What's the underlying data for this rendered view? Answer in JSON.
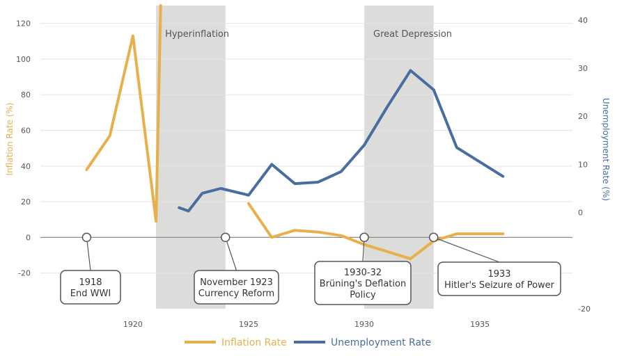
{
  "chart_data": {
    "type": "line",
    "xlim": [
      1916,
      1939
    ],
    "x_ticks": [
      1920,
      1925,
      1930,
      1935
    ],
    "ylabel_left": "Inflation Rate (%)",
    "ylabel_right": "Unemployment Rate (%)",
    "ylim_left": [
      -40,
      130
    ],
    "ylim_right": [
      -20,
      43
    ],
    "y_ticks_left": [
      -20,
      0,
      20,
      40,
      60,
      80,
      100,
      120
    ],
    "y_ticks_right": [
      -20,
      0,
      10,
      20,
      30,
      40
    ],
    "series": [
      {
        "name": "Inflation Rate",
        "axis": "left",
        "color": "#E8B04B",
        "segments": [
          [
            [
              1918,
              38
            ],
            [
              1919,
              57
            ],
            [
              1920,
              113
            ],
            [
              1921,
              9
            ],
            [
              1921.2,
              130
            ]
          ],
          [
            [
              1925,
              19
            ],
            [
              1926,
              0
            ],
            [
              1927,
              4
            ],
            [
              1928,
              3
            ],
            [
              1929,
              1
            ],
            [
              1930,
              -4
            ],
            [
              1931,
              -8
            ],
            [
              1932,
              -12
            ],
            [
              1933,
              -2
            ],
            [
              1934,
              2
            ],
            [
              1935,
              2
            ],
            [
              1936,
              2
            ]
          ]
        ]
      },
      {
        "name": "Unemployment Rate",
        "axis": "right",
        "color": "#4A6DA0",
        "segments": [
          [
            [
              1922,
              1
            ],
            [
              1922.4,
              0.3
            ],
            [
              1923,
              4
            ],
            [
              1923.8,
              5
            ],
            [
              1925,
              3.6
            ],
            [
              1926,
              10
            ],
            [
              1927,
              6
            ],
            [
              1928,
              6.3
            ],
            [
              1929,
              8.5
            ],
            [
              1930,
              14
            ],
            [
              1931,
              22
            ],
            [
              1932,
              29.5
            ],
            [
              1933,
              25.5
            ],
            [
              1934,
              13.5
            ],
            [
              1935,
              10.5
            ],
            [
              1936,
              7.5
            ]
          ]
        ]
      }
    ],
    "bands": [
      {
        "label": "Hyperinflation",
        "x_start": 1921,
        "x_end": 1924
      },
      {
        "label": "Great Depression",
        "x_start": 1930,
        "x_end": 1933
      }
    ],
    "annotations": [
      {
        "x": 1918,
        "lines": [
          "1918",
          "End WWI"
        ]
      },
      {
        "x": 1924,
        "lines": [
          "November 1923",
          "Currency Reform"
        ]
      },
      {
        "x": 1930,
        "lines": [
          "1930-32",
          "Brüning's Deflation",
          "Policy"
        ]
      },
      {
        "x": 1933,
        "lines": [
          "1933",
          "Hitler's Seizure of Power"
        ]
      }
    ],
    "legend": {
      "position": "bottom-center",
      "entries": [
        {
          "label": "Inflation Rate",
          "color": "#E8B04B"
        },
        {
          "label": "Unemployment Rate",
          "color": "#4A6DA0"
        }
      ]
    },
    "grid": true
  }
}
